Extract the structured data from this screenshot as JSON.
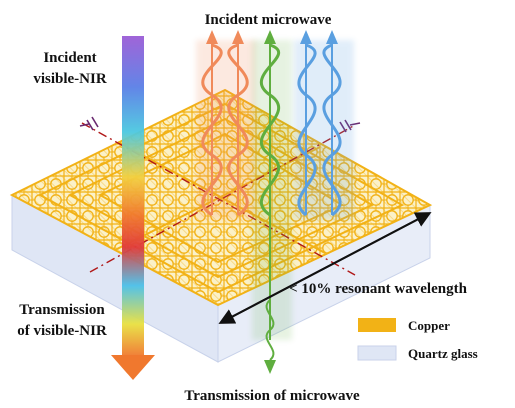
{
  "labels": {
    "incident_microwave": "Incident microwave",
    "incident_visible_line1": "Incident",
    "incident_visible_line2": "visible-NIR",
    "transmission_visible_line1": "Transmission",
    "transmission_visible_line2": "of visible-NIR",
    "transmission_microwave": "Transmission of microwave",
    "resonant_wavelength": "< 10% resonant wavelength"
  },
  "legend": [
    {
      "label": "Copper",
      "color": "#f2b216"
    },
    {
      "label": "Quartz glass",
      "color": "#dfe6f5"
    }
  ],
  "colors": {
    "copper": "#f2b216",
    "glass": "#dfe6f5",
    "wave_orange": "#f08a5a",
    "wave_green": "#5fae3f",
    "wave_blue": "#5a9fe0",
    "dashed_line": "#b01818"
  }
}
